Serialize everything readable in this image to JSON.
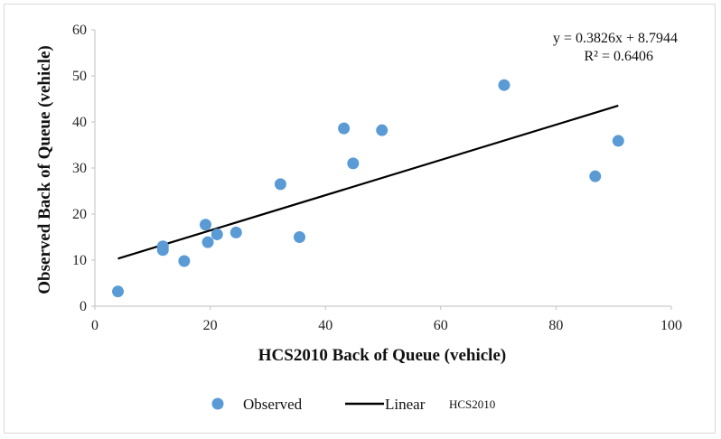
{
  "chart_data": {
    "type": "scatter",
    "xlabel": "HCS2010 Back of Queue (vehicle)",
    "ylabel": "Observed Back of Queue (vehicle)",
    "xlim": [
      0,
      100
    ],
    "ylim": [
      0,
      60
    ],
    "xticks": [
      "0",
      "20",
      "40",
      "60",
      "80",
      "100"
    ],
    "yticks": [
      "0",
      "10",
      "20",
      "30",
      "40",
      "50",
      "60"
    ],
    "grid": false,
    "series": [
      {
        "name": "Observed",
        "color": "#5b9bd5",
        "points": [
          {
            "x": 4,
            "y": 3.2
          },
          {
            "x": 11.8,
            "y": 12.2
          },
          {
            "x": 11.8,
            "y": 13.0
          },
          {
            "x": 15.5,
            "y": 9.8
          },
          {
            "x": 19.2,
            "y": 17.7
          },
          {
            "x": 19.6,
            "y": 13.9
          },
          {
            "x": 21.2,
            "y": 15.6
          },
          {
            "x": 24.5,
            "y": 16.0
          },
          {
            "x": 32.2,
            "y": 26.5
          },
          {
            "x": 35.5,
            "y": 15.0
          },
          {
            "x": 43.2,
            "y": 38.6
          },
          {
            "x": 44.8,
            "y": 31.0
          },
          {
            "x": 49.8,
            "y": 38.2
          },
          {
            "x": 71.0,
            "y": 48.0
          },
          {
            "x": 86.8,
            "y": 28.2
          },
          {
            "x": 90.8,
            "y": 35.9
          }
        ]
      }
    ],
    "trendline": {
      "name": "Linear",
      "suffix": "HCS2010",
      "color": "#000000",
      "slope": 0.3826,
      "intercept": 8.7944,
      "x_range": [
        4,
        90.8
      ],
      "equation": "y = 0.3826x + 8.7944",
      "r2": "R² = 0.6406"
    },
    "legend_position": "bottom"
  }
}
